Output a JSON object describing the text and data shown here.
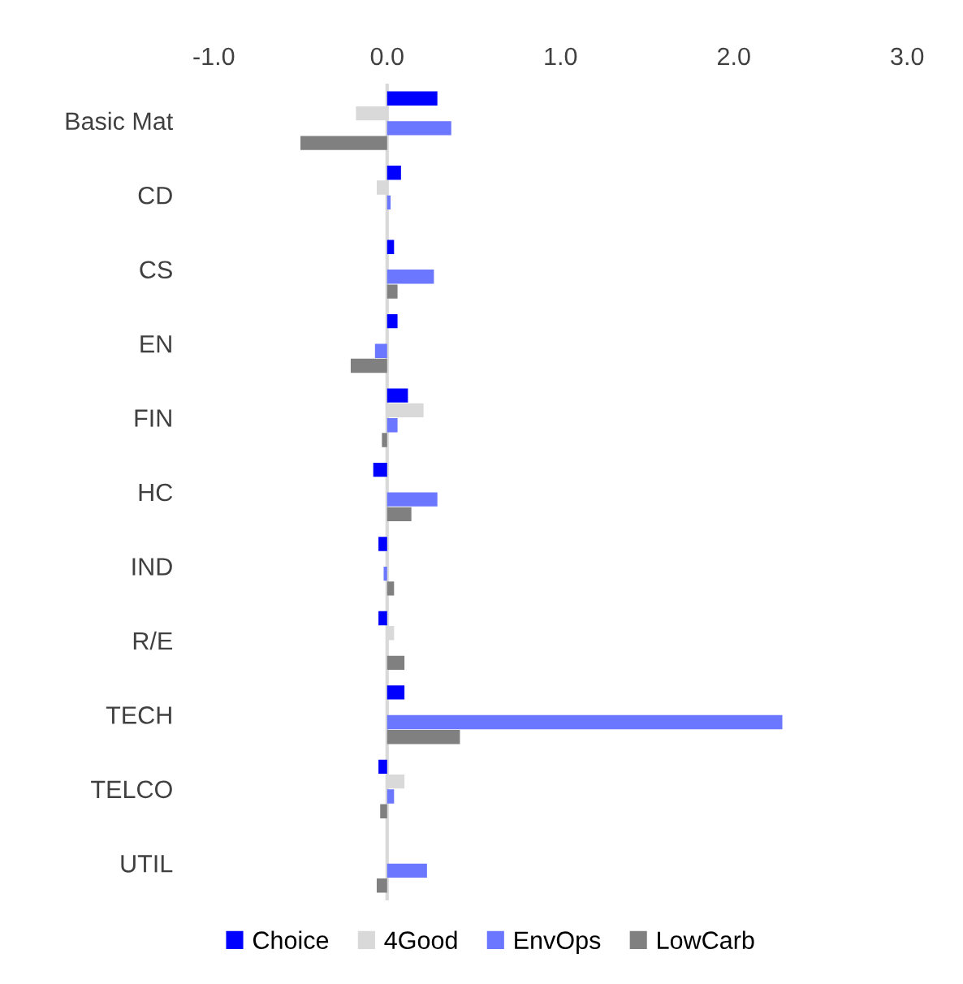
{
  "chart_data": {
    "type": "bar",
    "orientation": "horizontal",
    "categories": [
      "Basic Mat",
      "CD",
      "CS",
      "EN",
      "FIN",
      "HC",
      "IND",
      "R/E",
      "TECH",
      "TELCO",
      "UTIL"
    ],
    "series": [
      {
        "name": "Choice",
        "color": "#0000ff",
        "values": [
          0.29,
          0.08,
          0.04,
          0.06,
          0.12,
          -0.08,
          -0.05,
          -0.05,
          0.1,
          -0.05,
          0.0
        ]
      },
      {
        "name": "4Good",
        "color": "#d9d9d9",
        "values": [
          -0.18,
          -0.06,
          0.0,
          0.0,
          0.21,
          null,
          0.0,
          0.04,
          0.01,
          0.1,
          0.0
        ]
      },
      {
        "name": "EnvOps",
        "color": "#6b77ff",
        "values": [
          0.37,
          0.02,
          0.27,
          -0.07,
          0.06,
          0.29,
          -0.02,
          0.0,
          2.28,
          0.04,
          0.23
        ]
      },
      {
        "name": "LowCarb",
        "color": "#808080",
        "values": [
          -0.5,
          0.0,
          0.06,
          -0.21,
          -0.03,
          0.14,
          0.04,
          0.1,
          0.42,
          -0.04,
          -0.06
        ]
      }
    ],
    "xlim": [
      -1.0,
      3.0
    ],
    "xticks": [
      {
        "value": -1.0,
        "label": "-1.0"
      },
      {
        "value": 0.0,
        "label": "0.0"
      },
      {
        "value": 1.0,
        "label": "1.0"
      },
      {
        "value": 2.0,
        "label": "2.0"
      },
      {
        "value": 3.0,
        "label": "3.0"
      }
    ],
    "ref_lines": [
      {
        "axis": "x",
        "value": 0.0,
        "color": "#d9d9d9"
      }
    ],
    "legend": "bottom"
  }
}
